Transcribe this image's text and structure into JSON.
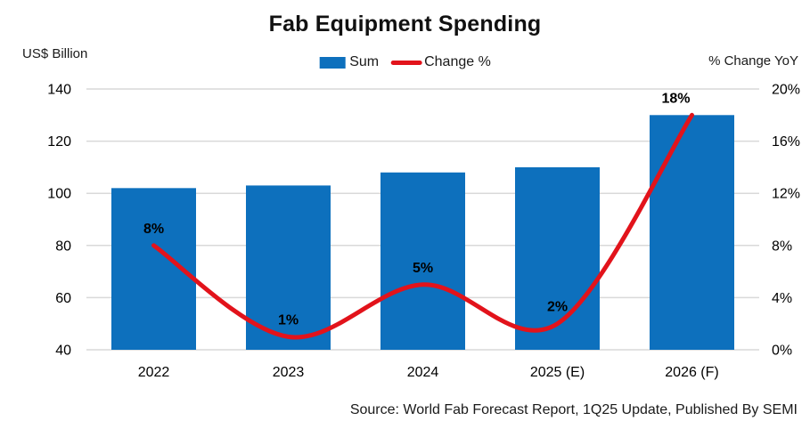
{
  "source": "Source: World Fab Forecast Report, 1Q25 Update, Published By SEMI",
  "colors": {
    "bar": "#0D70BD",
    "line": "#E2131B",
    "grid": "#D9D9D9",
    "text": "#000000"
  },
  "chart_data": {
    "type": "combo",
    "title": "Fab Equipment Spending",
    "categories": [
      "2022",
      "2023",
      "2024",
      "2025 (E)",
      "2026 (F)"
    ],
    "series": [
      {
        "name": "Sum",
        "type": "bar",
        "axis": "left",
        "values": [
          102,
          103,
          108,
          110,
          130
        ]
      },
      {
        "name": "Change %",
        "type": "line",
        "axis": "right",
        "values": [
          8,
          1,
          5,
          2,
          18
        ],
        "point_labels": [
          "8%",
          "1%",
          "5%",
          "2%",
          "18%"
        ]
      }
    ],
    "left_axis": {
      "label": "US$ Billion",
      "ticks": [
        140,
        120,
        100,
        80,
        60,
        40
      ],
      "range": [
        40,
        140
      ]
    },
    "right_axis": {
      "label": "% Change YoY",
      "ticks": [
        "20%",
        "16%",
        "12%",
        "8%",
        "4%",
        "0%"
      ],
      "tick_values": [
        20,
        16,
        12,
        8,
        4,
        0
      ],
      "range": [
        0,
        20
      ]
    },
    "grid": true,
    "legend_position": "top"
  }
}
